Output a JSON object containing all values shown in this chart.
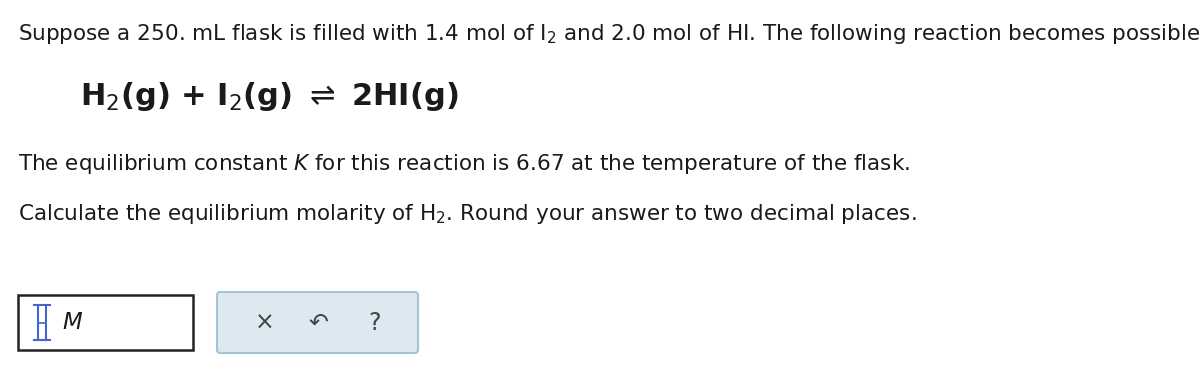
{
  "background_color": "#ffffff",
  "text_color": "#1a1a1a",
  "line1": "Suppose a 250. mL flask is filled with 1.4 mol of I$_2$ and 2.0 mol of HI. The following reaction becomes possible:",
  "equation": "H$_2$(g) + I$_2$(g) $\\rightleftharpoons$ 2HI(g)",
  "line3": "The equilibrium constant $\\mathit{K}$ for this reaction is 6.67 at the temperature of the flask.",
  "line4": "Calculate the equilibrium molarity of H$_2$. Round your answer to two decimal places.",
  "input_label": "M",
  "btn_x": "×",
  "btn_undo": "↶",
  "btn_q": "?",
  "font_size_main": 15.5,
  "font_size_eq": 22,
  "button_bg": "#dde9f0",
  "button_border": "#a0c4d8",
  "cursor_color": "#4466cc"
}
